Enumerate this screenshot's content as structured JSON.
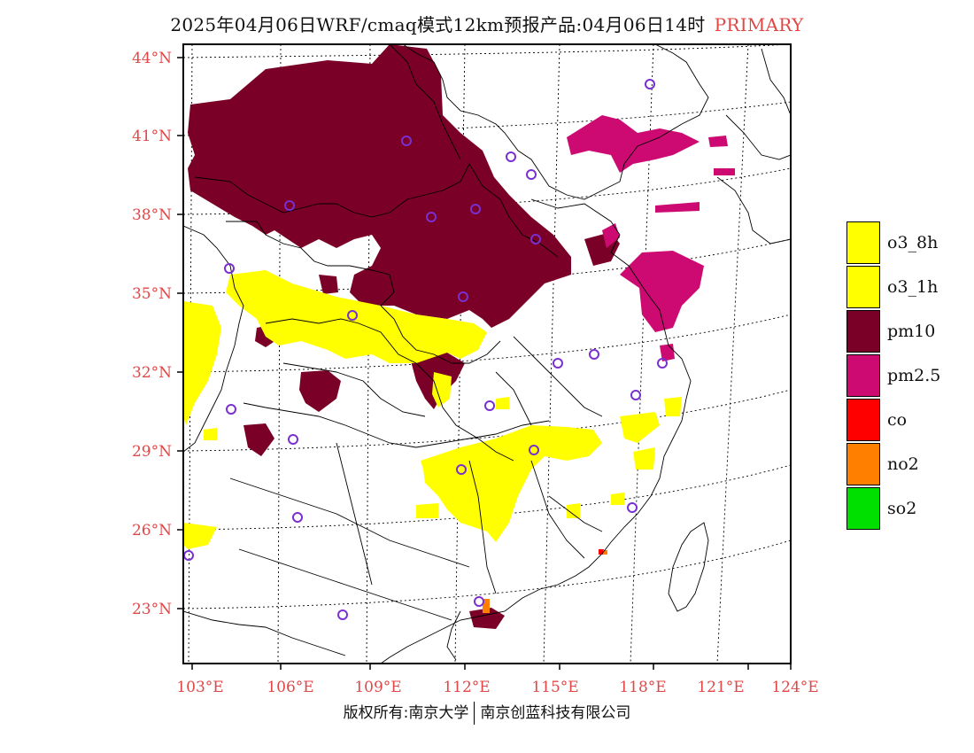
{
  "header": {
    "title": "2025年04月06日WRF/cmaq模式12km预报产品:04月06日14时",
    "primary_label": "PRIMARY"
  },
  "map": {
    "lat_labels": [
      "44°N",
      "41°N",
      "38°N",
      "35°N",
      "32°N",
      "29°N",
      "26°N",
      "23°N"
    ],
    "lon_labels": [
      "103°E",
      "106°E",
      "109°E",
      "112°E",
      "115°E",
      "118°E",
      "121°E",
      "124°E"
    ],
    "colors": {
      "o3_8h": "#ffff00",
      "o3_1h": "#ffff00",
      "pm10": "#7a0028",
      "pm2_5": "#cc0a72",
      "co": "#ff0000",
      "no2": "#ff8000",
      "so2": "#00e000",
      "station": "#7a2fd0",
      "label": "#e04848"
    }
  },
  "legend": {
    "items": [
      {
        "label": "o3_8h",
        "color": "#ffff00"
      },
      {
        "label": "o3_1h",
        "color": "#ffff00"
      },
      {
        "label": "pm10",
        "color": "#7a0028"
      },
      {
        "label": "pm2.5",
        "color": "#cc0a72"
      },
      {
        "label": "co",
        "color": "#ff0000"
      },
      {
        "label": "no2",
        "color": "#ff8000"
      },
      {
        "label": "so2",
        "color": "#00e000"
      }
    ]
  },
  "footer": {
    "left": "版权所有:南京大学",
    "right": "南京创蓝科技有限公司"
  }
}
